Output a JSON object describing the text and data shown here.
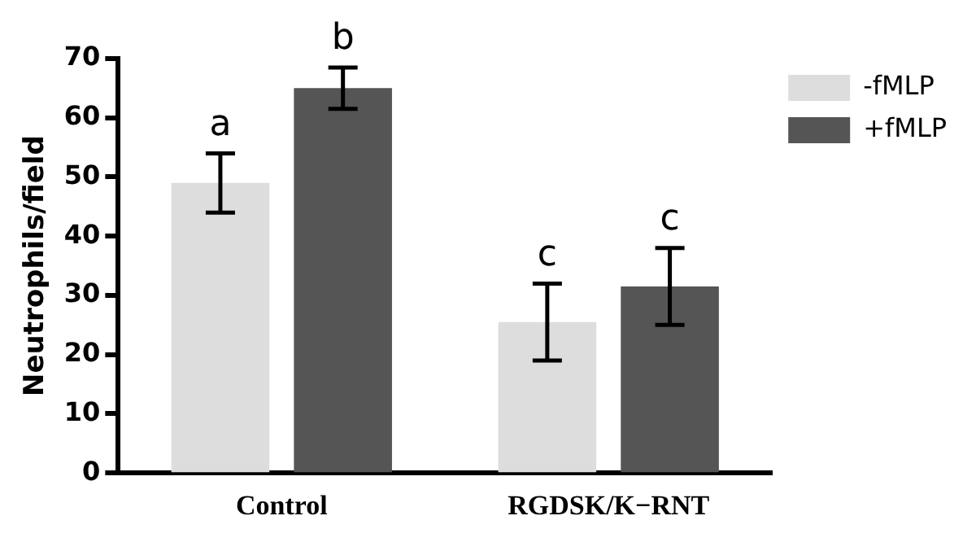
{
  "chart_data": {
    "type": "bar",
    "ylabel": "Neutrophils/field",
    "categories": [
      "Control",
      "RGDSK/K−RNT"
    ],
    "series": [
      {
        "name": "-fMLP",
        "color": "#dddddd",
        "values": [
          49,
          25.5
        ],
        "errors": [
          5,
          6.5
        ]
      },
      {
        "name": "+fMLP",
        "color": "#555555",
        "values": [
          65,
          31.5
        ],
        "errors": [
          3.5,
          6.5
        ]
      }
    ],
    "ylim": [
      0,
      70
    ],
    "yticks": [
      0,
      10,
      20,
      30,
      40,
      50,
      60,
      70
    ],
    "grid": false,
    "legend": "top right",
    "annotations": [
      "a",
      "b",
      "c",
      "c"
    ]
  }
}
